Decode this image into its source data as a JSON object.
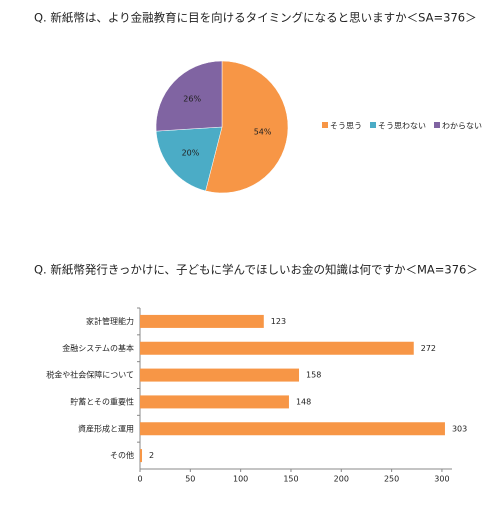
{
  "chart_data": [
    {
      "type": "pie",
      "title": "Q. 新紙幣は、より金融教育に目を向けるタイミングになると思いますか＜SA=376＞",
      "categories": [
        "そう思う",
        "そう思わない",
        "わからない"
      ],
      "values": [
        54,
        20,
        26
      ],
      "value_labels": [
        "54%",
        "20%",
        "26%"
      ],
      "colors": [
        "#f79646",
        "#4bacc6",
        "#8064a2"
      ],
      "legend": "right"
    },
    {
      "type": "hbar",
      "title": "Q. 新紙幣発行きっかけに、子どもに学んでほしいお金の知識は何ですか＜MA=376＞",
      "categories": [
        "家計管理能力",
        "金融システムの基本",
        "税金や社会保障について",
        "貯蓄とその重要性",
        "資産形成と運用",
        "その他"
      ],
      "values": [
        123,
        272,
        158,
        148,
        303,
        2
      ],
      "color": "#f79646",
      "xlim": [
        0,
        310
      ],
      "xticks": [
        0,
        50,
        100,
        150,
        200,
        250,
        300
      ]
    }
  ]
}
